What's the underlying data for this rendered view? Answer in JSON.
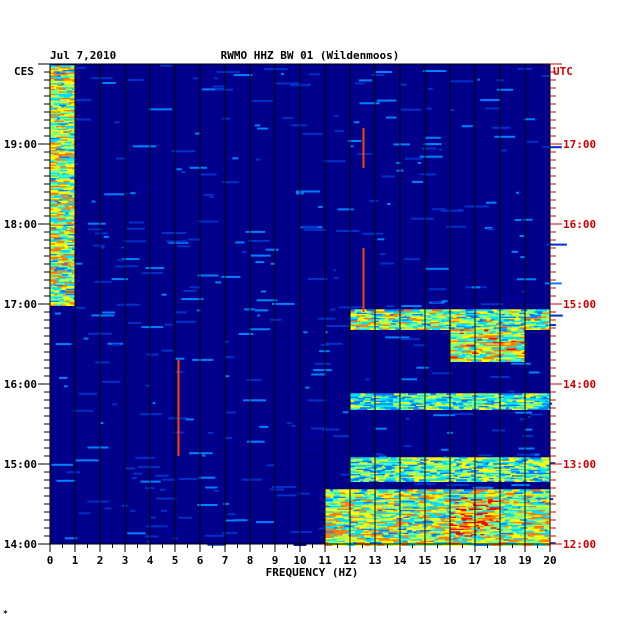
{
  "chart_data": {
    "type": "heatmap",
    "date": "Jul 7,2010",
    "title": "RWMO HHZ BW 01 (Wildenmoos)",
    "left_timezone": "CES",
    "right_timezone": "UTC",
    "xlabel": "FREQUENCY (HZ)",
    "xlim": [
      0,
      20
    ],
    "x_ticks": [
      "0",
      "1",
      "2",
      "3",
      "4",
      "5",
      "6",
      "7",
      "8",
      "9",
      "10",
      "11",
      "12",
      "13",
      "14",
      "15",
      "16",
      "17",
      "18",
      "19",
      "20"
    ],
    "left_time_ticks": [
      "14:00",
      "15:00",
      "16:00",
      "17:00",
      "18:00",
      "19:00"
    ],
    "right_time_ticks": [
      "12:00",
      "13:00",
      "14:00",
      "15:00",
      "16:00",
      "17:00"
    ],
    "y_range_ces_hours": [
      14.0,
      20.0
    ],
    "colormap": [
      "#0000a0",
      "#0030c8",
      "#0080ff",
      "#00e0ff",
      "#80ff80",
      "#ffff00",
      "#ff8000",
      "#ff0000"
    ],
    "background_color": "#00008b",
    "grid": "vertical lines every 1 Hz",
    "energy_regions": [
      {
        "f": [
          0.0,
          1.0
        ],
        "t": [
          17.0,
          20.0
        ],
        "level": 0.75
      },
      {
        "f": [
          12.0,
          20.0
        ],
        "t": [
          16.7,
          16.95
        ],
        "level": 0.7
      },
      {
        "f": [
          16.0,
          19.0
        ],
        "t": [
          16.3,
          16.7
        ],
        "level": 0.8
      },
      {
        "f": [
          12.0,
          20.0
        ],
        "t": [
          15.7,
          15.9
        ],
        "level": 0.6
      },
      {
        "f": [
          12.0,
          20.0
        ],
        "t": [
          14.8,
          15.1
        ],
        "level": 0.65
      },
      {
        "f": [
          11.0,
          20.0
        ],
        "t": [
          14.0,
          14.7
        ],
        "level": 0.75
      },
      {
        "f": [
          16.0,
          18.0
        ],
        "t": [
          14.1,
          14.6
        ],
        "level": 0.9
      }
    ],
    "transient_lines": [
      {
        "f": 5.1,
        "t": [
          15.1,
          16.3
        ]
      },
      {
        "f": 12.5,
        "t": [
          16.9,
          17.7
        ]
      },
      {
        "f": 12.5,
        "t": [
          18.7,
          19.2
        ]
      }
    ]
  },
  "footer_mark": "*"
}
